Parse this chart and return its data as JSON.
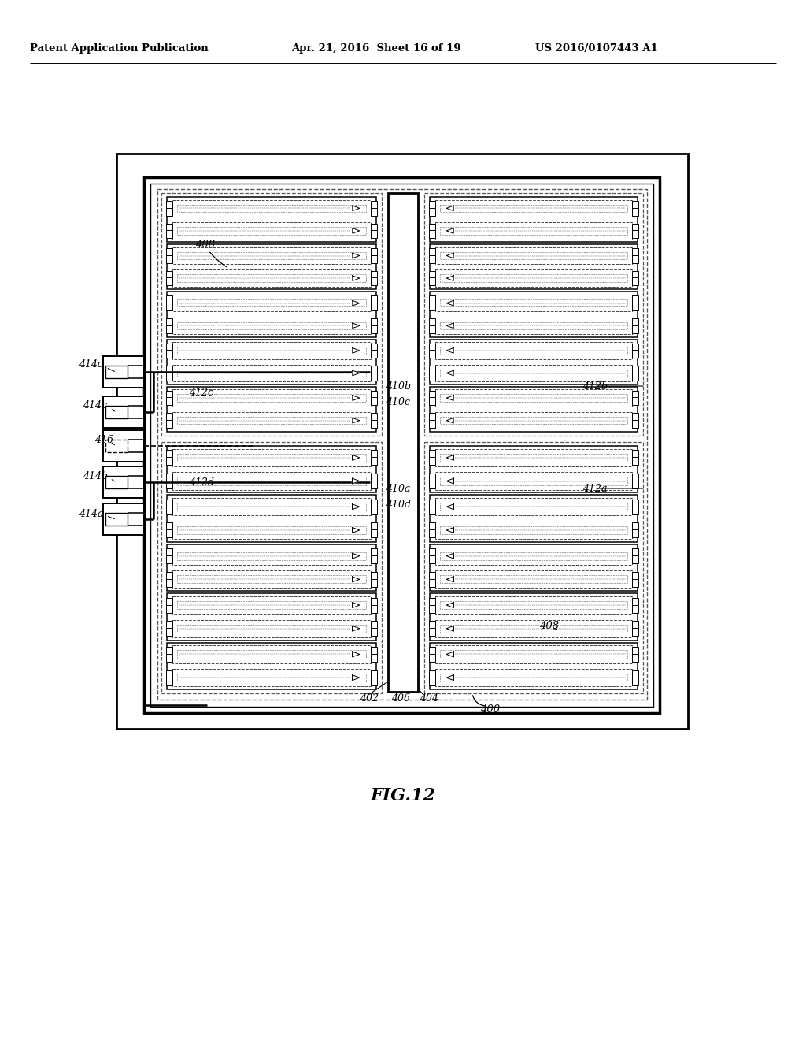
{
  "bg_color": "#ffffff",
  "header_left": "Patent Application Publication",
  "header_mid": "Apr. 21, 2016  Sheet 16 of 19",
  "header_right": "US 2016/0107443 A1",
  "fig_label": "FIG.12"
}
